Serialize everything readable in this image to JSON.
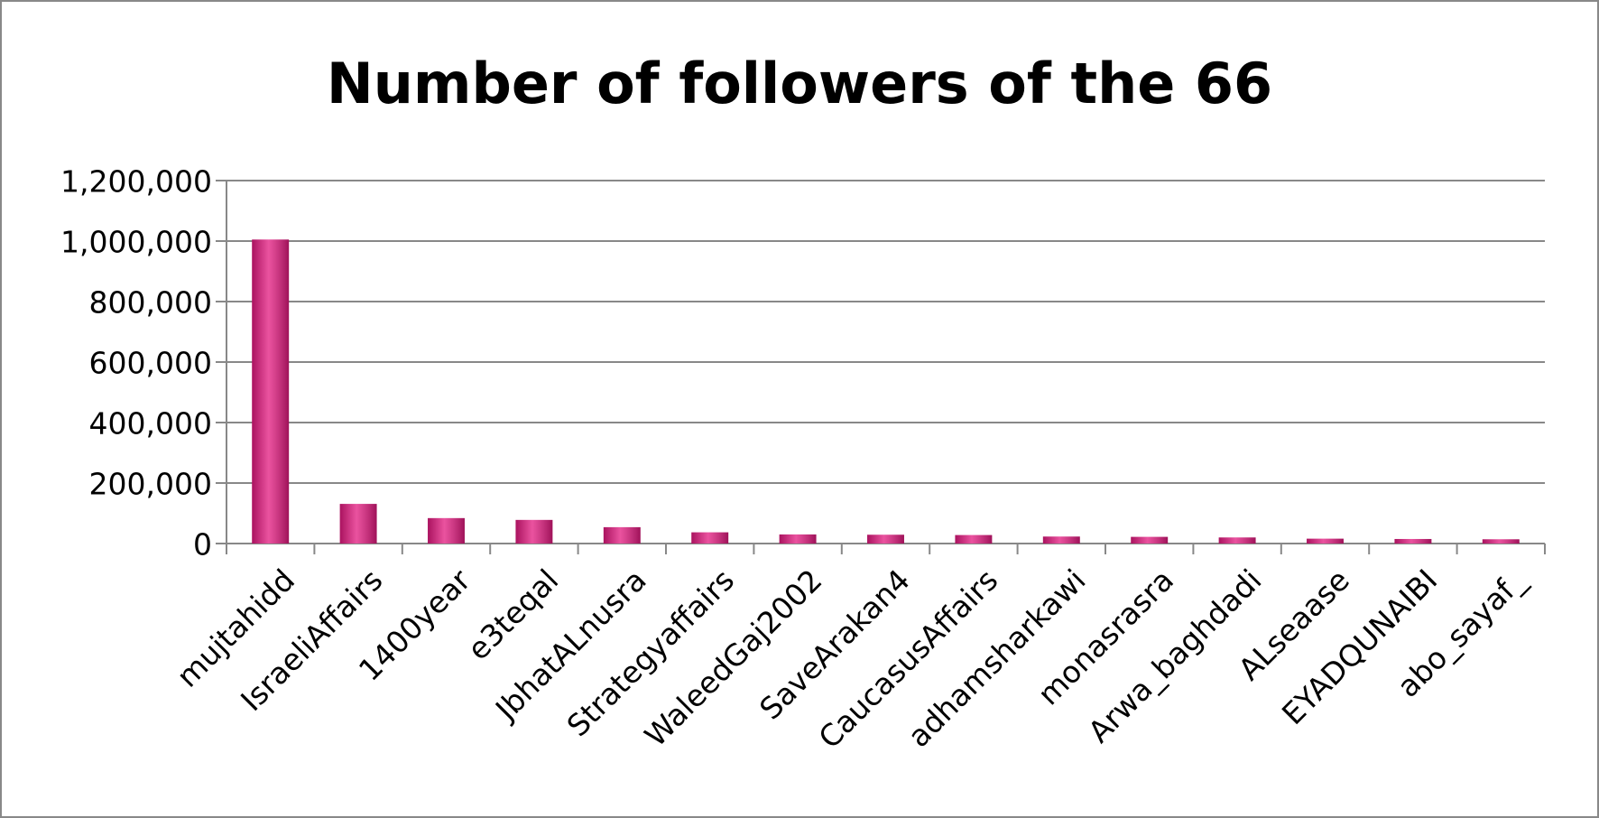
{
  "chart_data": {
    "type": "bar",
    "title": "Number of followers of the 66",
    "categories": [
      "mujtahidd",
      "IsraeliAffairs",
      "1400year",
      "e3teqal",
      "JbhatALnusra",
      "Strategyaffairs",
      "WaleedGaj2002",
      "SaveArakan4",
      "CaucasusAffairs",
      "adhamsharkawi",
      "monasrasra",
      "Arwa_baghdadi",
      "ALseaase",
      "EYADQUNAIBI",
      "abo_sayaf_"
    ],
    "values": [
      1005000,
      131000,
      84000,
      78000,
      54000,
      37000,
      30000,
      29000,
      28000,
      23000,
      22000,
      20000,
      16000,
      15000,
      14000
    ],
    "color": "#e3197f",
    "ylim": [
      0,
      1200000
    ],
    "yticks": [
      0,
      {
        "value": 200000,
        "label": "200,000"
      },
      {
        "value": 400000,
        "label": "400,000"
      },
      {
        "value": 600000,
        "label": "600,000"
      },
      {
        "value": 800000,
        "label": "800,000"
      },
      {
        "value": 1000000,
        "label": "1,000,000"
      },
      {
        "value": 1200000,
        "label": "1,200,000"
      }
    ],
    "grid": true
  }
}
